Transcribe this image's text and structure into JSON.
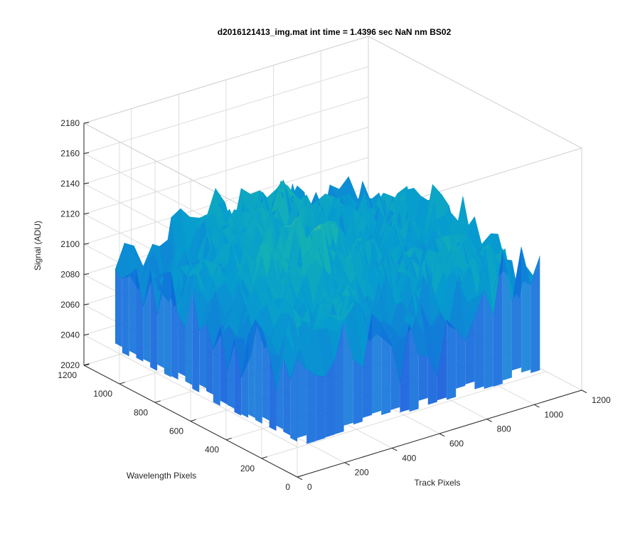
{
  "chart_data": {
    "type": "surface",
    "title": "d2016121413_img.mat int time = 1.4396 sec  NaN nm BS02",
    "xlabel": "Track Pixels",
    "ylabel": "Wavelength Pixels",
    "zlabel": "Signal (ADU)",
    "xlim": [
      0,
      1200
    ],
    "ylim": [
      0,
      1200
    ],
    "zlim": [
      2020,
      2180
    ],
    "xticks": [
      "0",
      "200",
      "400",
      "600",
      "800",
      "1000",
      "1200"
    ],
    "yticks": [
      "0",
      "200",
      "400",
      "600",
      "800",
      "1000",
      "1200"
    ],
    "zticks": [
      "2020",
      "2040",
      "2060",
      "2080",
      "2100",
      "2120",
      "2140",
      "2160",
      "2180"
    ],
    "grid": true,
    "colormap": "parula",
    "surface_extent": {
      "x": [
        0,
        1024
      ],
      "y": [
        0,
        1024
      ]
    },
    "signal_mean_approx": 2105,
    "signal_range_approx": [
      2040,
      2170
    ]
  }
}
